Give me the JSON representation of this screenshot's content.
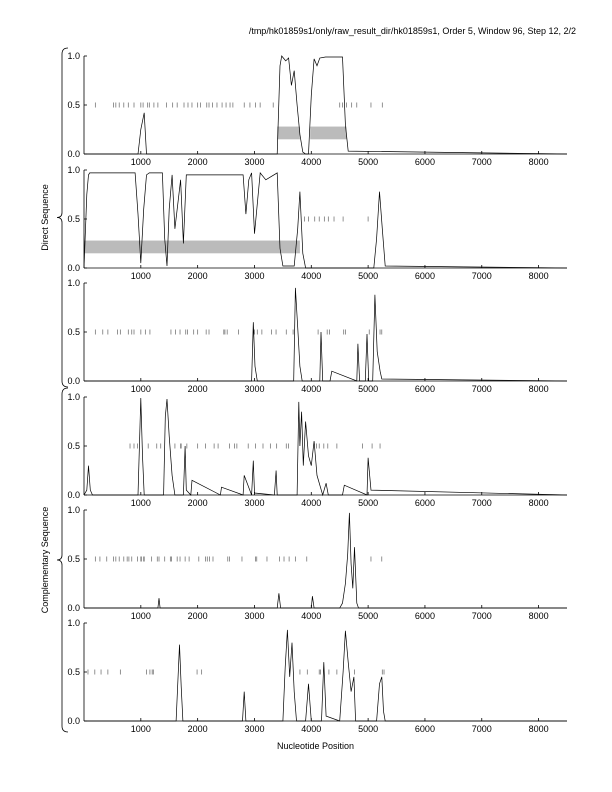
{
  "header": {
    "title": "/tmp/hk01859s1/only/raw_result_dir/hk01859s1, Order 5, Window 96, Step 12, 2/2"
  },
  "figure": {
    "xlabel": "Nucleotide Position",
    "group_labels": [
      "Direct Sequence",
      "Complementary Sequence"
    ],
    "colors": {
      "line": "#000000",
      "tick": "#777777",
      "band": "#bbbbbb"
    }
  },
  "chart_data": [
    {
      "type": "line",
      "group": "Direct Sequence",
      "xlim": [
        0,
        8500
      ],
      "ylim": [
        0,
        1
      ],
      "xticks": [
        1000,
        2000,
        3000,
        4000,
        5000,
        6000,
        7000,
        8000
      ],
      "yticks": [
        "0.0",
        "0.5",
        "1.0"
      ],
      "series": [
        {
          "x": [
            0,
            950,
            1000,
            1060,
            1100,
            3400,
            3450,
            3480,
            3550,
            3600,
            3650,
            3700,
            3750,
            3800,
            3850,
            3900,
            3950,
            4000,
            4050,
            4100,
            4150,
            4250,
            4400,
            4550,
            4600,
            4650,
            8500
          ],
          "y": [
            0,
            0,
            0.25,
            0.42,
            0,
            0,
            0.9,
            1.0,
            0.95,
            0.98,
            0.7,
            0.85,
            0.5,
            0.2,
            0.02,
            0,
            0,
            0.6,
            0.97,
            0.9,
            0.98,
            0.99,
            0.99,
            0.99,
            0.3,
            0.03,
            0
          ]
        }
      ],
      "ticks": {
        "y": 0.5,
        "x": [
          200,
          520,
          560,
          620,
          700,
          780,
          880,
          1000,
          1040,
          1120,
          1150,
          1230,
          1300,
          1450,
          1560,
          1640,
          1760,
          1830,
          1900,
          2000,
          2050,
          2160,
          2200,
          2260,
          2340,
          2430,
          2500,
          2570,
          2620,
          2820,
          2920,
          3020,
          3100,
          3330,
          4500,
          4550,
          4620,
          4710,
          4800,
          5050,
          5250
        ]
      },
      "bands": [
        {
          "x0": 3400,
          "x1": 3800,
          "y0": 0.15,
          "y1": 0.28
        },
        {
          "x0": 3980,
          "x1": 4620,
          "y0": 0.15,
          "y1": 0.28
        }
      ]
    },
    {
      "type": "line",
      "group": "Direct Sequence",
      "xlim": [
        0,
        8500
      ],
      "ylim": [
        0,
        1
      ],
      "xticks": [
        1000,
        2000,
        3000,
        4000,
        5000,
        6000,
        7000,
        8000
      ],
      "yticks": [
        "0.0",
        "0.5",
        "1.0"
      ],
      "series": [
        {
          "x": [
            0,
            50,
            80,
            100,
            150,
            900,
            950,
            1000,
            1050,
            1100,
            1150,
            1380,
            1420,
            1460,
            1500,
            1550,
            1600,
            1700,
            1750,
            1800,
            2800,
            2850,
            2900,
            2950,
            3000,
            3100,
            3200,
            3400,
            3450,
            3500,
            3700,
            3760,
            3800,
            3850,
            3900,
            5100,
            5150,
            5200,
            5250,
            5300,
            8500
          ],
          "y": [
            0,
            0.75,
            0.95,
            0.97,
            0.97,
            0.97,
            0.55,
            0.05,
            0.6,
            0.95,
            0.97,
            0.97,
            0.3,
            0.02,
            0.6,
            0.95,
            0.4,
            0.9,
            0.25,
            0.95,
            0.95,
            0.55,
            0.9,
            0.97,
            0.35,
            0.97,
            0.9,
            0.97,
            0.2,
            0.02,
            0.02,
            0.4,
            0.78,
            0.15,
            0,
            0,
            0.3,
            0.78,
            0.4,
            0.02,
            0
          ]
        }
      ],
      "ticks": {
        "y": 0.5,
        "x": [
          3880,
          3950,
          4060,
          4140,
          4230,
          4300,
          4400,
          4560,
          5000
        ]
      },
      "bands": [
        {
          "x0": 0,
          "x1": 3800,
          "y0": 0.15,
          "y1": 0.28
        }
      ]
    },
    {
      "type": "line",
      "group": "Direct Sequence",
      "xlim": [
        0,
        8500
      ],
      "ylim": [
        0,
        1
      ],
      "xticks": [
        1000,
        2000,
        3000,
        4000,
        5000,
        6000,
        7000,
        8000
      ],
      "yticks": [
        "0.0",
        "0.5",
        "1.0"
      ],
      "series": [
        {
          "x": [
            0,
            2950,
            2980,
            3010,
            3050,
            3690,
            3720,
            3760,
            3800,
            3840,
            4150,
            4170,
            4200,
            4330,
            4360,
            4800,
            4820,
            4850,
            4950,
            4980,
            5010,
            5080,
            5120,
            5160,
            5210,
            5240,
            8500
          ],
          "y": [
            0,
            0,
            0.6,
            0.15,
            0,
            0,
            0.95,
            0.55,
            0.15,
            0,
            0,
            0.5,
            0,
            0,
            0.1,
            0,
            0.38,
            0,
            0,
            0.48,
            0,
            0,
            0.88,
            0.3,
            0.1,
            0.02,
            0
          ]
        }
      ],
      "ticks": {
        "y": 0.5,
        "x": [
          200,
          330,
          420,
          590,
          640,
          780,
          840,
          880,
          1000,
          1080,
          1160,
          1530,
          1610,
          1690,
          1790,
          1820,
          1930,
          2000,
          2150,
          2200,
          2460,
          2480,
          2520,
          2720,
          3000,
          3050,
          3130,
          3300,
          3380,
          3560,
          3680,
          4120,
          4280,
          4320,
          4570,
          4600,
          5020,
          5210,
          5240
        ]
      },
      "bands": []
    },
    {
      "type": "line",
      "group": "Complementary Sequence",
      "xlim": [
        0,
        8500
      ],
      "ylim": [
        0,
        1
      ],
      "xticks": [
        1000,
        2000,
        3000,
        4000,
        5000,
        6000,
        7000,
        8000
      ],
      "yticks": [
        "0.0",
        "0.5",
        "1.0"
      ],
      "series": [
        {
          "x": [
            0,
            50,
            80,
            110,
            150,
            950,
            980,
            1000,
            1030,
            1060,
            1400,
            1430,
            1460,
            1500,
            1550,
            1600,
            1750,
            1780,
            1800,
            1880,
            1900,
            2400,
            2420,
            2800,
            2820,
            2950,
            2980,
            3000,
            3350,
            3380,
            3400,
            3750,
            3780,
            3800,
            3830,
            3860,
            3900,
            3950,
            4000,
            4050,
            4100,
            4200,
            4260,
            4300,
            4550,
            4580,
            4980,
            5000,
            5050,
            8500
          ],
          "y": [
            0,
            0.05,
            0.3,
            0.05,
            0,
            0,
            0.6,
            0.99,
            0.4,
            0,
            0,
            0.8,
            0.98,
            0.6,
            0.2,
            0,
            0,
            0.5,
            0.05,
            0,
            0.15,
            0,
            0.08,
            0,
            0.2,
            0,
            0.35,
            0.02,
            0,
            0.25,
            0,
            0,
            0.95,
            0.5,
            0.85,
            0.3,
            0.75,
            0.4,
            0.3,
            0.55,
            0.2,
            0,
            0.12,
            0,
            0,
            0.1,
            0,
            0.38,
            0.05,
            0
          ]
        }
      ],
      "ticks": {
        "y": 0.5,
        "x": [
          810,
          880,
          940,
          1130,
          1280,
          1350,
          1600,
          1700,
          1710,
          1810,
          2000,
          2140,
          2290,
          2360,
          2560,
          2650,
          2690,
          2890,
          3020,
          3150,
          3280,
          3390,
          3560,
          3600,
          4090,
          4140,
          4220,
          4290,
          4450,
          4900,
          5070,
          5210
        ]
      },
      "bands": []
    },
    {
      "type": "line",
      "group": "Complementary Sequence",
      "xlim": [
        0,
        8500
      ],
      "ylim": [
        0,
        1
      ],
      "xticks": [
        1000,
        2000,
        3000,
        4000,
        5000,
        6000,
        7000,
        8000
      ],
      "yticks": [
        "0.0",
        "0.5",
        "1.0"
      ],
      "series": [
        {
          "x": [
            0,
            1300,
            1320,
            1340,
            3400,
            3430,
            3460,
            4000,
            4020,
            4050,
            4500,
            4550,
            4600,
            4640,
            4670,
            4700,
            4730,
            4760,
            4800,
            4830,
            4900,
            8500
          ],
          "y": [
            0,
            0,
            0.1,
            0,
            0,
            0.15,
            0,
            0,
            0.12,
            0,
            0,
            0.05,
            0.25,
            0.55,
            0.97,
            0.45,
            0.2,
            0.62,
            0.05,
            0,
            0,
            0
          ]
        }
      ],
      "ticks": {
        "y": 0.5,
        "x": [
          200,
          280,
          400,
          520,
          560,
          620,
          700,
          760,
          790,
          840,
          940,
          1000,
          1010,
          1050,
          1060,
          1190,
          1290,
          1320,
          1420,
          1520,
          1540,
          1640,
          1690,
          1780,
          1850,
          2020,
          2140,
          2170,
          2210,
          2270,
          2530,
          2560,
          2780,
          3020,
          3040,
          3220,
          3440,
          3520,
          3610,
          3720,
          3920,
          5050,
          5240
        ]
      },
      "bands": []
    },
    {
      "type": "line",
      "group": "Complementary Sequence",
      "xlim": [
        0,
        8500
      ],
      "ylim": [
        0,
        1
      ],
      "xticks": [
        1000,
        2000,
        3000,
        4000,
        5000,
        6000,
        7000,
        8000
      ],
      "yticks": [
        "0.0",
        "0.5",
        "1.0"
      ],
      "series": [
        {
          "x": [
            0,
            1620,
            1680,
            1710,
            1740,
            2790,
            2820,
            2850,
            3500,
            3540,
            3580,
            3620,
            3660,
            3700,
            3740,
            3900,
            3950,
            4000,
            4050,
            4180,
            4220,
            4260,
            4500,
            4560,
            4600,
            4650,
            4700,
            4750,
            4780,
            5150,
            5200,
            5240,
            5270,
            5300,
            8500
          ],
          "y": [
            0,
            0,
            0.78,
            0.35,
            0,
            0,
            0.3,
            0,
            0,
            0.55,
            0.93,
            0.45,
            0.8,
            0.3,
            0,
            0,
            0.38,
            0,
            0,
            0,
            0.6,
            0.05,
            0,
            0.5,
            0.92,
            0.6,
            0.3,
            0.45,
            0,
            0,
            0.38,
            0.45,
            0.1,
            0,
            0
          ]
        }
      ],
      "ticks": {
        "y": 0.5,
        "x": [
          70,
          190,
          300,
          420,
          640,
          1100,
          1160,
          1200,
          1220,
          1990,
          2070,
          3800,
          3930,
          4140,
          4160,
          4310,
          4450,
          4760,
          5250,
          5280
        ]
      },
      "bands": []
    }
  ]
}
